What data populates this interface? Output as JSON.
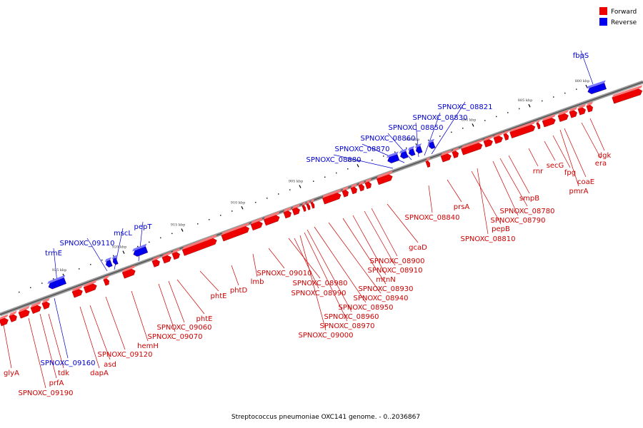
{
  "caption": "Streptococcus pneumoniae OXC141 genome. - 0..2036867",
  "legend": [
    {
      "label": "Forward",
      "color": "#ee0000"
    },
    {
      "label": "Reverse",
      "color": "#0000ee"
    }
  ],
  "ticks": [
    "880 kbp",
    "885 kbp",
    "890 kbp",
    "895 kbp",
    "900 kbp",
    "905 kbp",
    "910 kbp",
    "915 kbp",
    "920 kbp",
    "925 kbp"
  ],
  "genes": {
    "forward": [
      "glyA",
      "SPNOXC_09190",
      "prfA",
      "tdk",
      "dapA",
      "asd",
      "SPNOXC_09120",
      "hemH",
      "SPNOXC_09070",
      "SPNOXC_09060",
      "phtE",
      "phtE",
      "phtD",
      "lmb",
      "SPNOXC_09010",
      "SPNOXC_08980",
      "SPNOXC_08990",
      "SPNOXC_09000",
      "SPNOXC_08970",
      "SPNOXC_08960",
      "SPNOXC_08950",
      "SPNOXC_08940",
      "SPNOXC_08930",
      "mtnN",
      "SPNOXC_08910",
      "SPNOXC_08900",
      "gcaD",
      "SPNOXC_08840",
      "prsA",
      "pepB",
      "SPNOXC_08810",
      "SPNOXC_08790",
      "SPNOXC_08780",
      "smpB",
      "rnr",
      "secG",
      "fpg",
      "coaE",
      "pmrA",
      "era",
      "dgk"
    ],
    "reverse": [
      "fbpS",
      "SPNOXC_08821",
      "SPNOXC_08830",
      "SPNOXC_08850",
      "SPNOXC_08860",
      "SPNOXC_08870",
      "SPNOXC_08880",
      "pepT",
      "mscL",
      "SPNOXC_09110",
      "trmE",
      "SPNOXC_09160"
    ]
  }
}
